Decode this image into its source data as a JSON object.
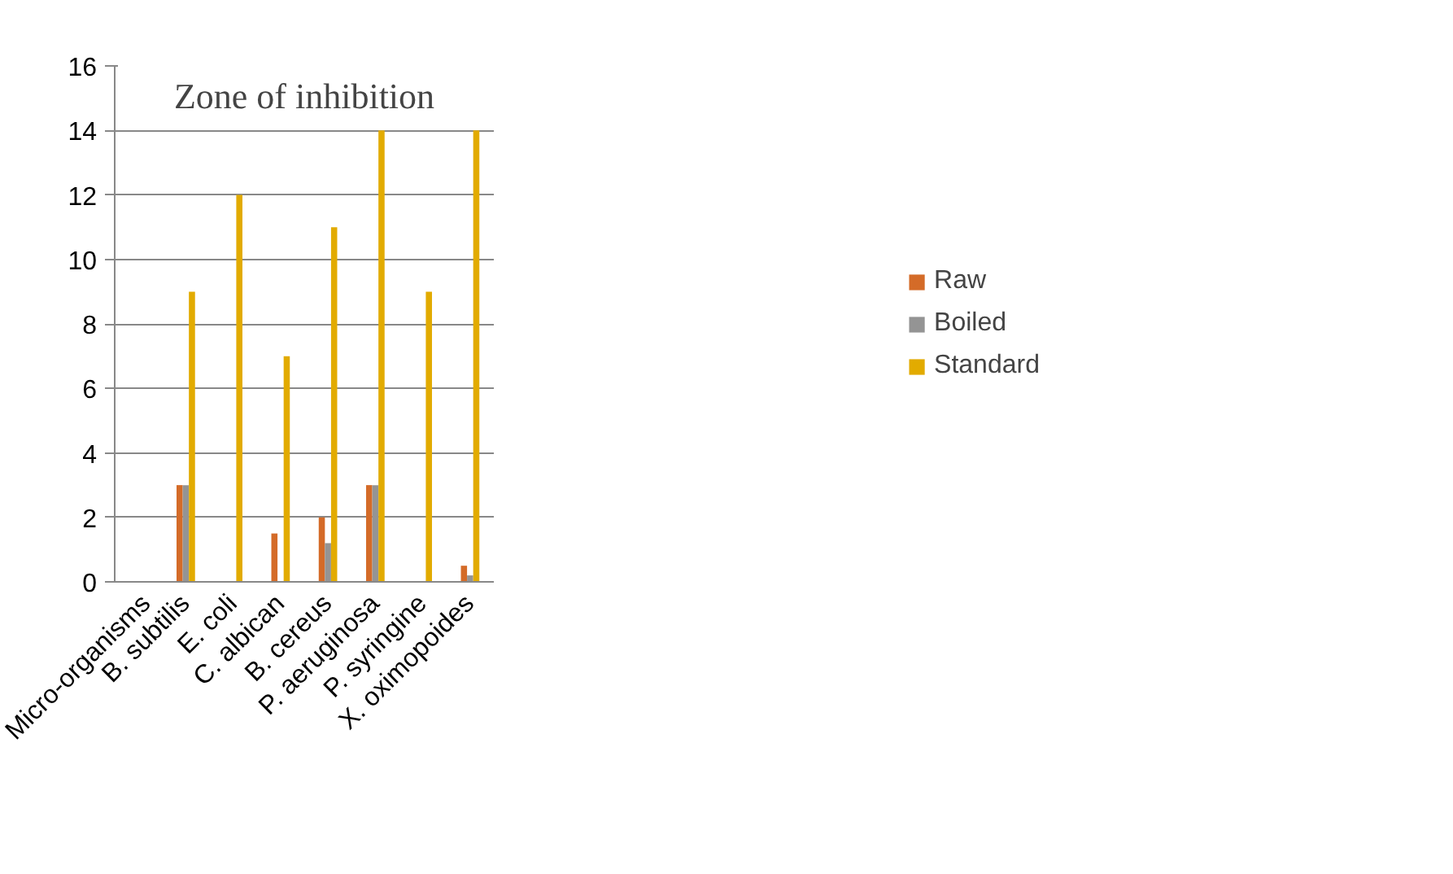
{
  "chart_data": {
    "type": "bar",
    "title": "Zone of inhibition",
    "categories": [
      "Micro-organisms",
      "B. subtilis",
      "E. coli",
      "C. albican",
      "B. cereus",
      "P. aeruginosa",
      "P. syringine",
      "X. oximopoides"
    ],
    "series": [
      {
        "name": "Raw",
        "color": "#d46b28",
        "values": [
          null,
          3,
          0,
          1.5,
          2,
          3,
          0,
          0.5
        ]
      },
      {
        "name": "Boiled",
        "color": "#949494",
        "values": [
          null,
          3,
          0,
          0,
          1.2,
          3,
          0,
          0.2
        ]
      },
      {
        "name": "Standard",
        "color": "#e2ab00",
        "values": [
          null,
          9,
          12,
          7,
          11,
          14,
          9,
          14
        ]
      }
    ],
    "ylim": [
      0,
      16
    ],
    "yticks": [
      0,
      2,
      4,
      6,
      8,
      10,
      12,
      14,
      16
    ],
    "grid": "y",
    "legend": "right"
  }
}
